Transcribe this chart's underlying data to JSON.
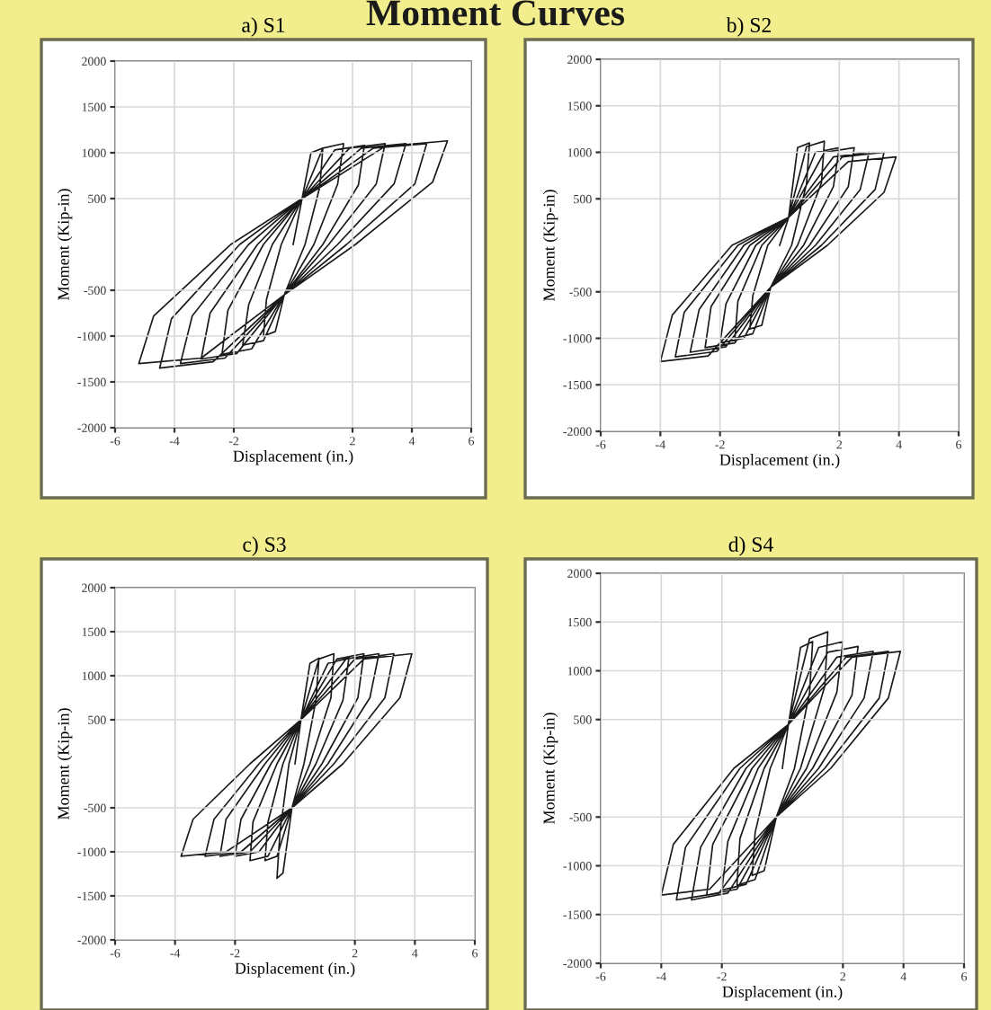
{
  "chart_data": [
    {
      "type": "line",
      "title": "a) S1",
      "annotations": [
        "Moment Curves"
      ],
      "xlabel": "Displacement (in.)",
      "ylabel": "Moment (Kip-in)",
      "xlim": [
        -6,
        6
      ],
      "ylim": [
        -2000,
        2000
      ],
      "xticks": [
        -6,
        -4,
        -2,
        2,
        4,
        6
      ],
      "yticks": [
        -2000,
        -1500,
        -1000,
        -500,
        500,
        1000,
        1500,
        2000
      ],
      "grid": true,
      "marker": "none",
      "line_style": "solid",
      "series": [
        {
          "color": "#1a1a1a",
          "x": [
            0,
            0.3,
            0.6,
            1.0,
            0.9,
            0.4,
            -0.3,
            -0.6,
            -1.0,
            -0.9,
            -0.4,
            0.3,
            1.0,
            1.7,
            1.5,
            0.7,
            -0.3,
            -1.0,
            -1.7,
            -1.5,
            -0.7,
            0.3,
            1.4,
            2.4,
            2.2,
            1.0,
            -0.3,
            -1.4,
            -2.4,
            -2.2,
            -1.0,
            0.3,
            1.9,
            3.1,
            2.8,
            1.2,
            -0.3,
            -1.9,
            -3.1,
            -2.8,
            -1.2,
            0.3,
            2.3,
            3.8,
            3.4,
            1.5,
            -0.3,
            -2.3,
            -3.8,
            -3.4,
            -1.5,
            0.3,
            2.7,
            4.5,
            4.1,
            1.8,
            -0.3,
            -2.7,
            -4.5,
            -4.1,
            -1.8,
            0.3,
            3.1,
            5.2,
            4.7,
            2.1,
            -0.3,
            -3.1,
            -5.2,
            -4.7,
            -2.1,
            0.3
          ],
          "values": [
            0,
            500,
            1000,
            1050,
            630,
            0,
            -550,
            -950,
            -1000,
            -600,
            0,
            500,
            1050,
            1100,
            660,
            0,
            -550,
            -1050,
            -1100,
            -660,
            0,
            500,
            1030,
            1080,
            650,
            0,
            -550,
            -1140,
            -1200,
            -720,
            0,
            500,
            1050,
            1100,
            660,
            0,
            -550,
            -1190,
            -1250,
            -750,
            0,
            500,
            1050,
            1100,
            660,
            0,
            -550,
            -1240,
            -1300,
            -780,
            0,
            500,
            1050,
            1100,
            660,
            0,
            -550,
            -1280,
            -1350,
            -810,
            0,
            500,
            1070,
            1130,
            680,
            0,
            -550,
            -1240,
            -1300,
            -780,
            0,
            500
          ]
        }
      ]
    },
    {
      "type": "line",
      "title": "b) S2",
      "xlabel": "Displacement (in.)",
      "ylabel": "Moment (Kip-in)",
      "xlim": [
        -6,
        6
      ],
      "ylim": [
        -2000,
        2000
      ],
      "xticks": [
        -6,
        -4,
        -2,
        2,
        4,
        6
      ],
      "yticks": [
        -2000,
        -1500,
        -1000,
        -500,
        500,
        1000,
        1500,
        2000
      ],
      "grid": true,
      "marker": "none",
      "line_style": "solid",
      "series": [
        {
          "color": "#1a1a1a",
          "x": [
            0,
            0.3,
            0.6,
            1.0,
            0.9,
            0.4,
            -0.3,
            -0.6,
            -1.0,
            -0.9,
            -0.4,
            0.3,
            0.9,
            1.5,
            1.4,
            0.6,
            -0.3,
            -0.9,
            -1.5,
            -1.4,
            -0.6,
            0.3,
            1.2,
            2.0,
            1.8,
            0.8,
            -0.3,
            -1.2,
            -2.0,
            -1.8,
            -0.8,
            0.3,
            1.5,
            2.5,
            2.3,
            1.0,
            -0.3,
            -1.5,
            -2.5,
            -2.3,
            -1.0,
            0.3,
            1.8,
            3.0,
            2.7,
            1.2,
            -0.3,
            -1.8,
            -3.0,
            -2.7,
            -1.2,
            0.3,
            2.1,
            3.5,
            3.2,
            1.4,
            -0.3,
            -2.1,
            -3.5,
            -3.2,
            -1.4,
            0.3,
            2.3,
            3.9,
            3.5,
            1.6,
            -0.3,
            -2.4,
            -4.0,
            -3.6,
            -1.6,
            0.3
          ],
          "values": [
            0,
            300,
            1050,
            1100,
            660,
            0,
            -450,
            -860,
            -900,
            -540,
            0,
            300,
            1060,
            1120,
            670,
            0,
            -450,
            -950,
            -1000,
            -600,
            0,
            300,
            1000,
            1050,
            630,
            0,
            -450,
            -1000,
            -1050,
            -630,
            0,
            300,
            1000,
            1050,
            630,
            0,
            -450,
            -1050,
            -1100,
            -660,
            0,
            300,
            950,
            1000,
            600,
            0,
            -450,
            -1090,
            -1150,
            -690,
            0,
            300,
            950,
            1000,
            600,
            0,
            -450,
            -1140,
            -1200,
            -720,
            0,
            300,
            900,
            950,
            570,
            0,
            -450,
            -1190,
            -1250,
            -750,
            0,
            300
          ]
        }
      ]
    },
    {
      "type": "line",
      "title": "c) S3",
      "xlabel": "Displacement (in.)",
      "ylabel": "Moment (Kip-in)",
      "xlim": [
        -6,
        6
      ],
      "ylim": [
        -2000,
        2000
      ],
      "xticks": [
        -6,
        -4,
        -2,
        2,
        4,
        6
      ],
      "yticks": [
        -2000,
        -1500,
        -1000,
        -500,
        500,
        1000,
        1500,
        2000
      ],
      "grid": true,
      "marker": "none",
      "line_style": "solid",
      "series": [
        {
          "color": "#1a1a1a",
          "x": [
            0,
            0.2,
            0.5,
            0.8,
            0.7,
            0.3,
            -0.1,
            -0.4,
            -0.6,
            -0.5,
            -0.2,
            0.2,
            0.8,
            1.3,
            1.2,
            0.5,
            -0.1,
            -0.6,
            -1.0,
            -0.9,
            -0.4,
            0.2,
            1.1,
            1.8,
            1.6,
            0.7,
            -0.1,
            -0.9,
            -1.5,
            -1.4,
            -0.6,
            0.2,
            1.4,
            2.3,
            2.1,
            0.9,
            -0.1,
            -1.2,
            -2.0,
            -1.8,
            -0.8,
            0.2,
            1.7,
            2.8,
            2.5,
            1.1,
            -0.1,
            -1.5,
            -2.5,
            -2.3,
            -1.0,
            0.2,
            2.0,
            3.3,
            3.0,
            1.3,
            -0.1,
            -1.8,
            -3.0,
            -2.7,
            -1.2,
            0.2,
            2.3,
            3.9,
            3.5,
            1.6,
            -0.1,
            -2.3,
            -3.8,
            -3.4,
            -1.5,
            0.2
          ],
          "values": [
            0,
            500,
            1140,
            1200,
            720,
            0,
            -500,
            -1240,
            -1300,
            -780,
            0,
            500,
            1190,
            1250,
            750,
            0,
            -500,
            -1050,
            -1100,
            -660,
            0,
            500,
            1140,
            1200,
            720,
            0,
            -500,
            -1050,
            -1100,
            -660,
            0,
            500,
            1190,
            1250,
            750,
            0,
            -500,
            -1000,
            -1050,
            -630,
            0,
            500,
            1190,
            1250,
            750,
            0,
            -500,
            -1000,
            -1050,
            -630,
            0,
            500,
            1190,
            1250,
            750,
            0,
            -500,
            -1000,
            -1050,
            -630,
            0,
            500,
            1190,
            1250,
            750,
            0,
            -500,
            -1000,
            -1050,
            -630,
            0,
            500
          ]
        }
      ]
    },
    {
      "type": "line",
      "title": "d) S4",
      "xlabel": "Displacement (in.)",
      "ylabel": "Moment (Kip-in)",
      "xlim": [
        -6,
        6
      ],
      "ylim": [
        -2000,
        2000
      ],
      "xticks": [
        -6,
        -4,
        -2,
        2,
        4,
        6
      ],
      "yticks": [
        -2000,
        -1500,
        -1000,
        -500,
        500,
        1000,
        1500,
        2000
      ],
      "grid": true,
      "marker": "none",
      "line_style": "solid",
      "series": [
        {
          "color": "#1a1a1a",
          "x": [
            0,
            0.2,
            0.6,
            1.0,
            0.9,
            0.4,
            -0.2,
            -0.6,
            -1.0,
            -0.9,
            -0.4,
            0.2,
            0.9,
            1.5,
            1.4,
            0.6,
            -0.2,
            -0.9,
            -1.5,
            -1.4,
            -0.6,
            0.2,
            1.2,
            2.0,
            1.8,
            0.8,
            -0.2,
            -1.2,
            -2.0,
            -1.8,
            -0.8,
            0.2,
            1.5,
            2.5,
            2.3,
            1.0,
            -0.2,
            -1.5,
            -2.5,
            -2.3,
            -1.0,
            0.2,
            1.8,
            3.0,
            2.7,
            1.2,
            -0.2,
            -1.8,
            -3.0,
            -2.7,
            -1.2,
            0.2,
            2.1,
            3.5,
            3.2,
            1.4,
            -0.2,
            -2.1,
            -3.5,
            -3.2,
            -1.4,
            0.2,
            2.3,
            3.9,
            3.5,
            1.6,
            -0.2,
            -2.4,
            -4.0,
            -3.6,
            -1.6,
            0.2
          ],
          "values": [
            0,
            450,
            1240,
            1300,
            780,
            0,
            -500,
            -1050,
            -1100,
            -660,
            0,
            450,
            1330,
            1400,
            840,
            0,
            -500,
            -1140,
            -1200,
            -720,
            0,
            450,
            1240,
            1300,
            780,
            0,
            -500,
            -1190,
            -1250,
            -750,
            0,
            450,
            1190,
            1250,
            750,
            0,
            -500,
            -1240,
            -1300,
            -780,
            0,
            450,
            1140,
            1200,
            720,
            0,
            -500,
            -1280,
            -1350,
            -810,
            0,
            450,
            1140,
            1200,
            720,
            0,
            -500,
            -1280,
            -1350,
            -810,
            0,
            450,
            1140,
            1200,
            720,
            0,
            -500,
            -1240,
            -1300,
            -780,
            0,
            450
          ]
        }
      ]
    }
  ]
}
